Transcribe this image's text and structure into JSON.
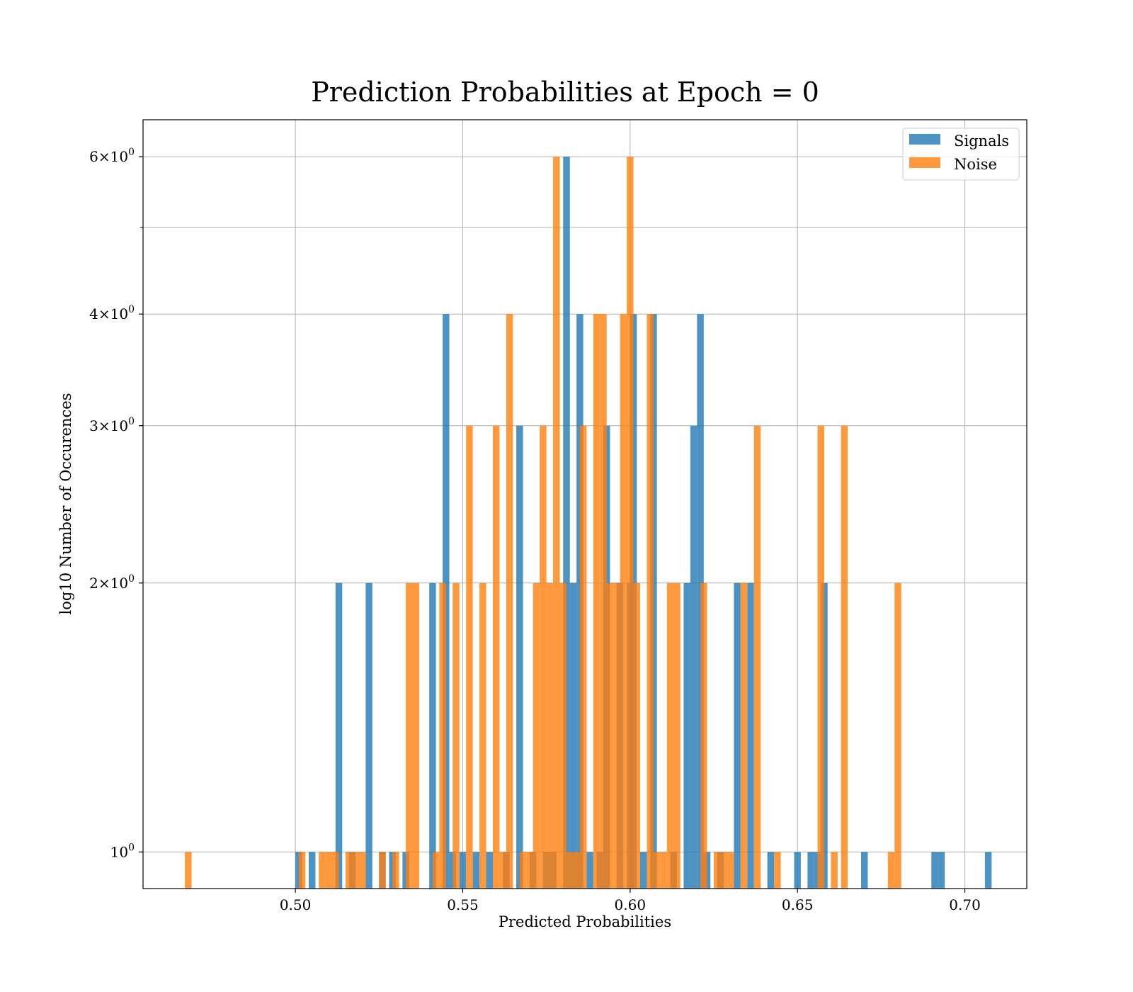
{
  "chart_data": {
    "type": "bar",
    "title": "Prediction Probabilities at Epoch = 0",
    "xlabel": "Predicted Probabilities",
    "ylabel": "log10 Number of Occurences",
    "yscale": "log",
    "xlim": [
      0.4545,
      0.7185
    ],
    "ylim": [
      0.91,
      6.6
    ],
    "bin_width": 0.002,
    "grid": true,
    "legend_position": "top-right",
    "x_ticks": [
      {
        "value": 0.5,
        "label": "0.50"
      },
      {
        "value": 0.55,
        "label": "0.55"
      },
      {
        "value": 0.6,
        "label": "0.60"
      },
      {
        "value": 0.65,
        "label": "0.65"
      },
      {
        "value": 0.7,
        "label": "0.70"
      }
    ],
    "y_ticks": [
      {
        "value": 1,
        "label": "10⁰",
        "mantissa": "",
        "exp": "0"
      },
      {
        "value": 2,
        "label": "2×10⁰",
        "mantissa": "2",
        "exp": "0"
      },
      {
        "value": 3,
        "label": "3×10⁰",
        "mantissa": "3",
        "exp": "0"
      },
      {
        "value": 4,
        "label": "4×10⁰",
        "mantissa": "4",
        "exp": "0"
      },
      {
        "value": 6,
        "label": "6×10⁰",
        "mantissa": "6",
        "exp": "0"
      }
    ],
    "y_minor_ticks": [
      5
    ],
    "series": [
      {
        "name": "Signals",
        "color": "#1f77b4",
        "opacity": 0.8,
        "bins": [
          [
            0.5,
            1
          ],
          [
            0.504,
            1
          ],
          [
            0.512,
            2
          ],
          [
            0.516,
            1
          ],
          [
            0.521,
            2
          ],
          [
            0.525,
            1
          ],
          [
            0.528,
            1
          ],
          [
            0.532,
            1
          ],
          [
            0.54,
            2
          ],
          [
            0.544,
            4
          ],
          [
            0.546,
            1
          ],
          [
            0.549,
            1
          ],
          [
            0.553,
            1
          ],
          [
            0.557,
            1
          ],
          [
            0.562,
            1
          ],
          [
            0.566,
            3
          ],
          [
            0.57,
            1
          ],
          [
            0.574,
            1
          ],
          [
            0.576,
            1
          ],
          [
            0.58,
            6
          ],
          [
            0.582,
            2
          ],
          [
            0.584,
            4
          ],
          [
            0.587,
            1
          ],
          [
            0.59,
            1
          ],
          [
            0.592,
            3
          ],
          [
            0.596,
            2
          ],
          [
            0.599,
            2
          ],
          [
            0.6,
            4
          ],
          [
            0.603,
            1
          ],
          [
            0.606,
            4
          ],
          [
            0.612,
            1
          ],
          [
            0.616,
            2
          ],
          [
            0.618,
            3
          ],
          [
            0.62,
            4
          ],
          [
            0.622,
            1
          ],
          [
            0.626,
            1
          ],
          [
            0.631,
            2
          ],
          [
            0.635,
            2
          ],
          [
            0.641,
            1
          ],
          [
            0.649,
            1
          ],
          [
            0.653,
            1
          ],
          [
            0.655,
            1
          ],
          [
            0.657,
            2
          ],
          [
            0.669,
            1
          ],
          [
            0.69,
            1
          ],
          [
            0.692,
            1
          ],
          [
            0.706,
            1
          ]
        ]
      },
      {
        "name": "Noise",
        "color": "#ff7f0e",
        "opacity": 0.8,
        "bins": [
          [
            0.467,
            1
          ],
          [
            0.501,
            1
          ],
          [
            0.507,
            1
          ],
          [
            0.509,
            1
          ],
          [
            0.511,
            1
          ],
          [
            0.515,
            1
          ],
          [
            0.517,
            1
          ],
          [
            0.519,
            1
          ],
          [
            0.525,
            1
          ],
          [
            0.529,
            1
          ],
          [
            0.533,
            2
          ],
          [
            0.535,
            2
          ],
          [
            0.541,
            1
          ],
          [
            0.543,
            2
          ],
          [
            0.547,
            2
          ],
          [
            0.551,
            3
          ],
          [
            0.555,
            2
          ],
          [
            0.559,
            3
          ],
          [
            0.561,
            1
          ],
          [
            0.563,
            4
          ],
          [
            0.567,
            1
          ],
          [
            0.569,
            1
          ],
          [
            0.571,
            2
          ],
          [
            0.573,
            3
          ],
          [
            0.575,
            2
          ],
          [
            0.577,
            6
          ],
          [
            0.579,
            2
          ],
          [
            0.581,
            1
          ],
          [
            0.583,
            1
          ],
          [
            0.585,
            3
          ],
          [
            0.589,
            4
          ],
          [
            0.591,
            4
          ],
          [
            0.593,
            2
          ],
          [
            0.595,
            2
          ],
          [
            0.597,
            4
          ],
          [
            0.599,
            6
          ],
          [
            0.601,
            2
          ],
          [
            0.605,
            4
          ],
          [
            0.607,
            1
          ],
          [
            0.609,
            1
          ],
          [
            0.611,
            2
          ],
          [
            0.613,
            2
          ],
          [
            0.621,
            2
          ],
          [
            0.625,
            1
          ],
          [
            0.627,
            1
          ],
          [
            0.629,
            1
          ],
          [
            0.633,
            2
          ],
          [
            0.637,
            3
          ],
          [
            0.643,
            1
          ],
          [
            0.656,
            3
          ],
          [
            0.66,
            1
          ],
          [
            0.663,
            3
          ],
          [
            0.677,
            1
          ],
          [
            0.679,
            2
          ]
        ]
      }
    ]
  }
}
